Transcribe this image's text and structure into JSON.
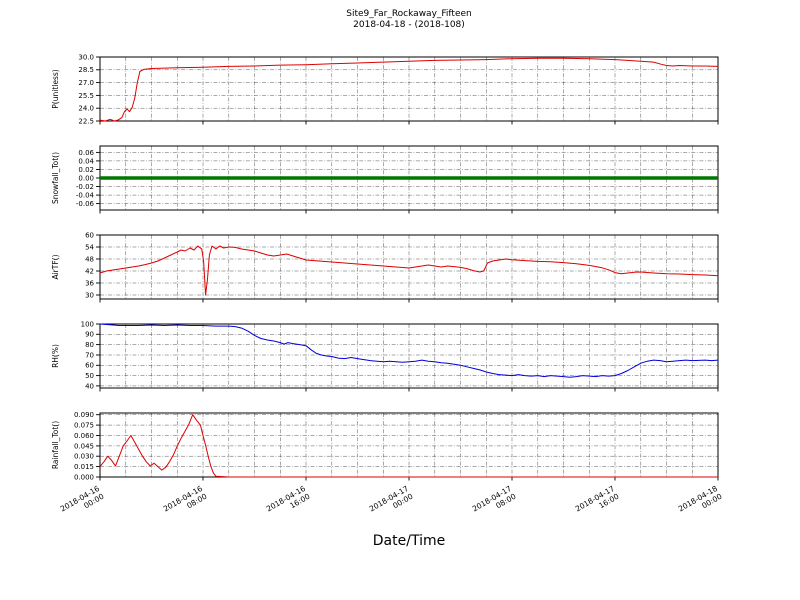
{
  "chart_data": {
    "type": "line",
    "title": "Site9_Far_Rockaway_Fifteen",
    "subtitle": "2018-04-18 - (2018-108)",
    "xlabel": "Date/Time",
    "grid": "dash-dot",
    "legend": "none",
    "x_axis": {
      "min_hours": 0,
      "max_hours": 48,
      "minor_step_hours": 2,
      "major_ticks_hours": [
        0,
        8,
        16,
        24,
        32,
        40,
        48
      ],
      "tick_labels": [
        [
          "2018-04-16",
          "00:00"
        ],
        [
          "2018-04-16",
          "08:00"
        ],
        [
          "2018-04-16",
          "16:00"
        ],
        [
          "2018-04-17",
          "00:00"
        ],
        [
          "2018-04-17",
          "08:00"
        ],
        [
          "2018-04-17",
          "16:00"
        ],
        [
          "2018-04-18",
          "00:00"
        ]
      ]
    },
    "panels": [
      {
        "ylabel": "P(unitless)",
        "color": "#dd0000",
        "line_width": 1,
        "ymin": 22.5,
        "ymax": 30.0,
        "ytick_values": [
          30.0,
          28.5,
          27.0,
          25.5,
          24.0,
          22.5
        ],
        "ytick_labels": [
          "30.0",
          "28.5",
          "27.0",
          "25.5",
          "24.0",
          "22.5"
        ],
        "points": [
          [
            0,
            22.6
          ],
          [
            0.4,
            22.5
          ],
          [
            0.8,
            22.7
          ],
          [
            1.1,
            22.5
          ],
          [
            1.4,
            22.6
          ],
          [
            1.7,
            22.9
          ],
          [
            1.9,
            23.6
          ],
          [
            2.1,
            23.9
          ],
          [
            2.3,
            23.6
          ],
          [
            2.5,
            24.1
          ],
          [
            2.7,
            25.2
          ],
          [
            2.9,
            27.0
          ],
          [
            3.1,
            28.3
          ],
          [
            3.4,
            28.55
          ],
          [
            4,
            28.65
          ],
          [
            5,
            28.7
          ],
          [
            6,
            28.75
          ],
          [
            8,
            28.8
          ],
          [
            10,
            28.9
          ],
          [
            12,
            28.95
          ],
          [
            14,
            29.05
          ],
          [
            16,
            29.1
          ],
          [
            18,
            29.2
          ],
          [
            20,
            29.3
          ],
          [
            22,
            29.4
          ],
          [
            24,
            29.5
          ],
          [
            26,
            29.6
          ],
          [
            28,
            29.65
          ],
          [
            30,
            29.7
          ],
          [
            32,
            29.8
          ],
          [
            34,
            29.85
          ],
          [
            36,
            29.85
          ],
          [
            38,
            29.8
          ],
          [
            40,
            29.7
          ],
          [
            41,
            29.6
          ],
          [
            42,
            29.5
          ],
          [
            43,
            29.4
          ],
          [
            43.6,
            29.15
          ],
          [
            44,
            29.0
          ],
          [
            44.5,
            28.95
          ],
          [
            45,
            29.0
          ],
          [
            46,
            28.95
          ],
          [
            47,
            28.95
          ],
          [
            48,
            28.9
          ]
        ]
      },
      {
        "ylabel": "Snowfall_Tot()",
        "color": "#007700",
        "line_width": 3.5,
        "ymin": -0.075,
        "ymax": 0.075,
        "ytick_values": [
          0.06,
          0.04,
          0.02,
          0.0,
          -0.02,
          -0.04,
          -0.06
        ],
        "ytick_labels": [
          "0.06",
          "0.04",
          "0.02",
          "0.00",
          "-0.02",
          "-0.04",
          "-0.06"
        ],
        "points": [
          [
            0,
            0
          ],
          [
            48,
            0
          ]
        ]
      },
      {
        "ylabel": "AirTF()",
        "color": "#dd0000",
        "line_width": 1,
        "ymin": 28,
        "ymax": 60,
        "ytick_values": [
          60,
          54,
          48,
          42,
          36,
          30
        ],
        "ytick_labels": [
          "60",
          "54",
          "48",
          "42",
          "36",
          "30"
        ],
        "points": [
          [
            0,
            41
          ],
          [
            0.5,
            42
          ],
          [
            1,
            42.5
          ],
          [
            1.5,
            43
          ],
          [
            2,
            43.5
          ],
          [
            2.5,
            44
          ],
          [
            3,
            44.5
          ],
          [
            3.5,
            45.2
          ],
          [
            4,
            46
          ],
          [
            4.5,
            47
          ],
          [
            5,
            48.5
          ],
          [
            5.5,
            50
          ],
          [
            6,
            51.5
          ],
          [
            6.3,
            52.5
          ],
          [
            6.6,
            52
          ],
          [
            7,
            53.5
          ],
          [
            7.3,
            52.5
          ],
          [
            7.6,
            54.5
          ],
          [
            7.9,
            53
          ],
          [
            8.05,
            47
          ],
          [
            8.2,
            30
          ],
          [
            8.35,
            38
          ],
          [
            8.5,
            50
          ],
          [
            8.7,
            54.5
          ],
          [
            9,
            53
          ],
          [
            9.3,
            54.5
          ],
          [
            9.6,
            53.5
          ],
          [
            10,
            54
          ],
          [
            10.5,
            53.8
          ],
          [
            11,
            53
          ],
          [
            11.5,
            52.5
          ],
          [
            12,
            52
          ],
          [
            12.5,
            51
          ],
          [
            13,
            50
          ],
          [
            13.5,
            49.5
          ],
          [
            14,
            50
          ],
          [
            14.5,
            50.5
          ],
          [
            15,
            49.5
          ],
          [
            15.5,
            48.5
          ],
          [
            16,
            47.5
          ],
          [
            17,
            47
          ],
          [
            18,
            46.5
          ],
          [
            19,
            46
          ],
          [
            20,
            45.5
          ],
          [
            21,
            45
          ],
          [
            22,
            44.5
          ],
          [
            23,
            44
          ],
          [
            24,
            43.5
          ],
          [
            24.5,
            44
          ],
          [
            25,
            44.5
          ],
          [
            25.5,
            45
          ],
          [
            26,
            44.5
          ],
          [
            26.5,
            44
          ],
          [
            27,
            44.5
          ],
          [
            27.5,
            44.2
          ],
          [
            28,
            43.8
          ],
          [
            28.5,
            43.2
          ],
          [
            29,
            42.2
          ],
          [
            29.5,
            41.5
          ],
          [
            29.8,
            42
          ],
          [
            30.1,
            46
          ],
          [
            30.5,
            47
          ],
          [
            31,
            47.5
          ],
          [
            31.5,
            48
          ],
          [
            32,
            47.6
          ],
          [
            33,
            47.2
          ],
          [
            34,
            46.8
          ],
          [
            35,
            46.6
          ],
          [
            36,
            46.2
          ],
          [
            37,
            45.6
          ],
          [
            38,
            44.8
          ],
          [
            39,
            43.6
          ],
          [
            39.5,
            42.6
          ],
          [
            40,
            41.2
          ],
          [
            40.5,
            40.6
          ],
          [
            41,
            41
          ],
          [
            41.5,
            41.4
          ],
          [
            42,
            41.5
          ],
          [
            43,
            41
          ],
          [
            44,
            40.6
          ],
          [
            45,
            40.5
          ],
          [
            46,
            40.2
          ],
          [
            47,
            40
          ],
          [
            48,
            39.6
          ]
        ]
      },
      {
        "ylabel": "RH(%)",
        "color": "#0000dd",
        "line_width": 1,
        "ymin": 38,
        "ymax": 100,
        "ytick_values": [
          100,
          90,
          80,
          70,
          60,
          50,
          40
        ],
        "ytick_labels": [
          "100",
          "90",
          "80",
          "70",
          "60",
          "50",
          "40"
        ],
        "points": [
          [
            0,
            100
          ],
          [
            0.5,
            99.5
          ],
          [
            1,
            99
          ],
          [
            1.5,
            98.5
          ],
          [
            2,
            98.5
          ],
          [
            3,
            98.5
          ],
          [
            4,
            99
          ],
          [
            5,
            98.5
          ],
          [
            6,
            99
          ],
          [
            7,
            98.5
          ],
          [
            8,
            98.5
          ],
          [
            9,
            98
          ],
          [
            10,
            98
          ],
          [
            10.5,
            97.5
          ],
          [
            11,
            96
          ],
          [
            11.5,
            93
          ],
          [
            12,
            89
          ],
          [
            12.5,
            86
          ],
          [
            13,
            84.5
          ],
          [
            13.5,
            83.5
          ],
          [
            14,
            82
          ],
          [
            14.3,
            80.5
          ],
          [
            14.6,
            82
          ],
          [
            15,
            81
          ],
          [
            15.5,
            80
          ],
          [
            16,
            79
          ],
          [
            16.4,
            75
          ],
          [
            16.8,
            71.5
          ],
          [
            17.2,
            70
          ],
          [
            17.6,
            69
          ],
          [
            18,
            68.5
          ],
          [
            18.5,
            67
          ],
          [
            19,
            66.5
          ],
          [
            19.5,
            67.5
          ],
          [
            20,
            66.5
          ],
          [
            20.5,
            65.5
          ],
          [
            21,
            64.5
          ],
          [
            21.5,
            64
          ],
          [
            22,
            63.5
          ],
          [
            22.5,
            64
          ],
          [
            23,
            63.5
          ],
          [
            23.5,
            63
          ],
          [
            24,
            63.5
          ],
          [
            24.5,
            64
          ],
          [
            25,
            65
          ],
          [
            25.5,
            64
          ],
          [
            26,
            63.5
          ],
          [
            26.5,
            62.5
          ],
          [
            27,
            62
          ],
          [
            27.5,
            61
          ],
          [
            28,
            60
          ],
          [
            28.5,
            58.5
          ],
          [
            29,
            57
          ],
          [
            29.5,
            55.5
          ],
          [
            30,
            53.5
          ],
          [
            30.5,
            52
          ],
          [
            31,
            51
          ],
          [
            31.5,
            50.5
          ],
          [
            32,
            50
          ],
          [
            32.5,
            51
          ],
          [
            33,
            50
          ],
          [
            33.5,
            49.5
          ],
          [
            34,
            50
          ],
          [
            34.5,
            49
          ],
          [
            35,
            50
          ],
          [
            35.5,
            49.5
          ],
          [
            36,
            49
          ],
          [
            36.5,
            48.5
          ],
          [
            37,
            49
          ],
          [
            37.5,
            50
          ],
          [
            38,
            49.5
          ],
          [
            38.5,
            49
          ],
          [
            39,
            50
          ],
          [
            39.5,
            49.5
          ],
          [
            40,
            50
          ],
          [
            40.5,
            52
          ],
          [
            41,
            55
          ],
          [
            41.5,
            58.5
          ],
          [
            42,
            62
          ],
          [
            42.5,
            64
          ],
          [
            43,
            65
          ],
          [
            43.5,
            64.5
          ],
          [
            44,
            63.5
          ],
          [
            44.5,
            64
          ],
          [
            45,
            64.5
          ],
          [
            45.5,
            65
          ],
          [
            46,
            64.5
          ],
          [
            47,
            65
          ],
          [
            47.5,
            64.5
          ],
          [
            48,
            65
          ]
        ]
      },
      {
        "ylabel": "Rainfall_Tot()",
        "color": "#dd0000",
        "line_width": 1,
        "ymin": 0.0,
        "ymax": 0.0925,
        "ytick_values": [
          0.09,
          0.075,
          0.06,
          0.045,
          0.03,
          0.015,
          0.0
        ],
        "ytick_labels": [
          "0.090",
          "0.075",
          "0.060",
          "0.045",
          "0.030",
          "0.015",
          "0.000"
        ],
        "points": [
          [
            0,
            0.015
          ],
          [
            0.3,
            0.022
          ],
          [
            0.6,
            0.03
          ],
          [
            0.9,
            0.024
          ],
          [
            1.2,
            0.016
          ],
          [
            1.5,
            0.03
          ],
          [
            1.8,
            0.045
          ],
          [
            2.1,
            0.052
          ],
          [
            2.4,
            0.06
          ],
          [
            2.7,
            0.05
          ],
          [
            3,
            0.04
          ],
          [
            3.3,
            0.03
          ],
          [
            3.6,
            0.022
          ],
          [
            3.9,
            0.016
          ],
          [
            4.2,
            0.02
          ],
          [
            4.5,
            0.015
          ],
          [
            4.8,
            0.01
          ],
          [
            5.1,
            0.014
          ],
          [
            5.4,
            0.022
          ],
          [
            5.7,
            0.032
          ],
          [
            6,
            0.045
          ],
          [
            6.3,
            0.056
          ],
          [
            6.6,
            0.066
          ],
          [
            6.9,
            0.076
          ],
          [
            7.2,
            0.09
          ],
          [
            7.5,
            0.082
          ],
          [
            7.8,
            0.075
          ],
          [
            8,
            0.06
          ],
          [
            8.2,
            0.046
          ],
          [
            8.4,
            0.03
          ],
          [
            8.6,
            0.016
          ],
          [
            8.8,
            0.006
          ],
          [
            9,
            0.001
          ],
          [
            10,
            0
          ],
          [
            48,
            0
          ]
        ]
      }
    ]
  }
}
